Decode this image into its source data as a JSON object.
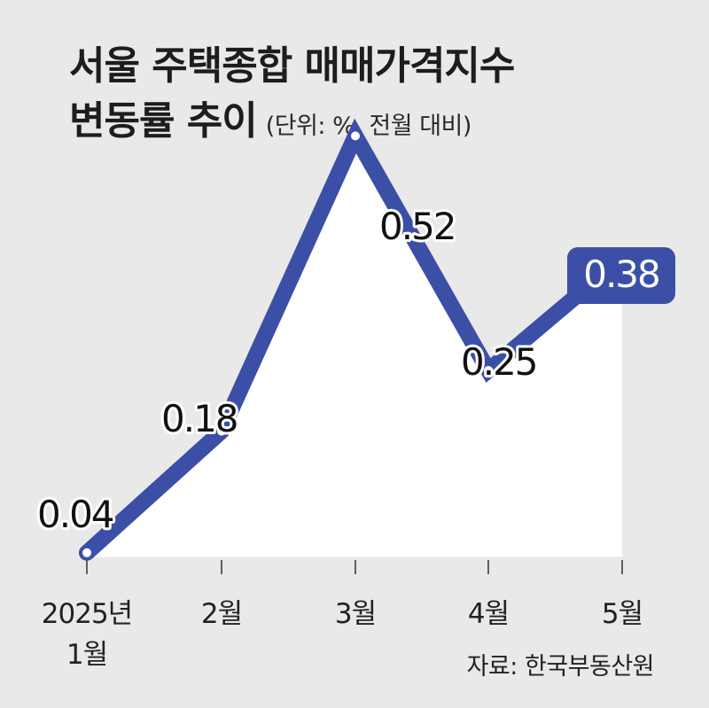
{
  "title": {
    "line1": "서울 주택종합 매매가격지수",
    "line2": "변동률 추이",
    "unit_note": "(단위: %, 전월 대비)"
  },
  "source": "자료: 한국부동산원",
  "colors": {
    "line": "#3b4fa6",
    "fill": "#ffffff",
    "background": "#e9e9ea",
    "highlight_badge": "#3b4fa6"
  },
  "chart_data": {
    "type": "area",
    "categories": [
      [
        "2025년",
        "1월"
      ],
      [
        "2월"
      ],
      [
        "3월"
      ],
      [
        "4월"
      ],
      [
        "5월"
      ]
    ],
    "values": [
      0.04,
      0.18,
      0.52,
      0.25,
      0.38
    ],
    "value_labels": [
      "0.04",
      "0.18",
      "0.52",
      "0.25",
      "0.38"
    ],
    "highlight_index": 4,
    "title": "서울 주택종합 매매가격지수 변동률 추이",
    "unit": "%",
    "xlabel": "",
    "ylabel": "",
    "ylim": [
      0,
      0.6
    ],
    "grid": false,
    "legend": "none"
  }
}
